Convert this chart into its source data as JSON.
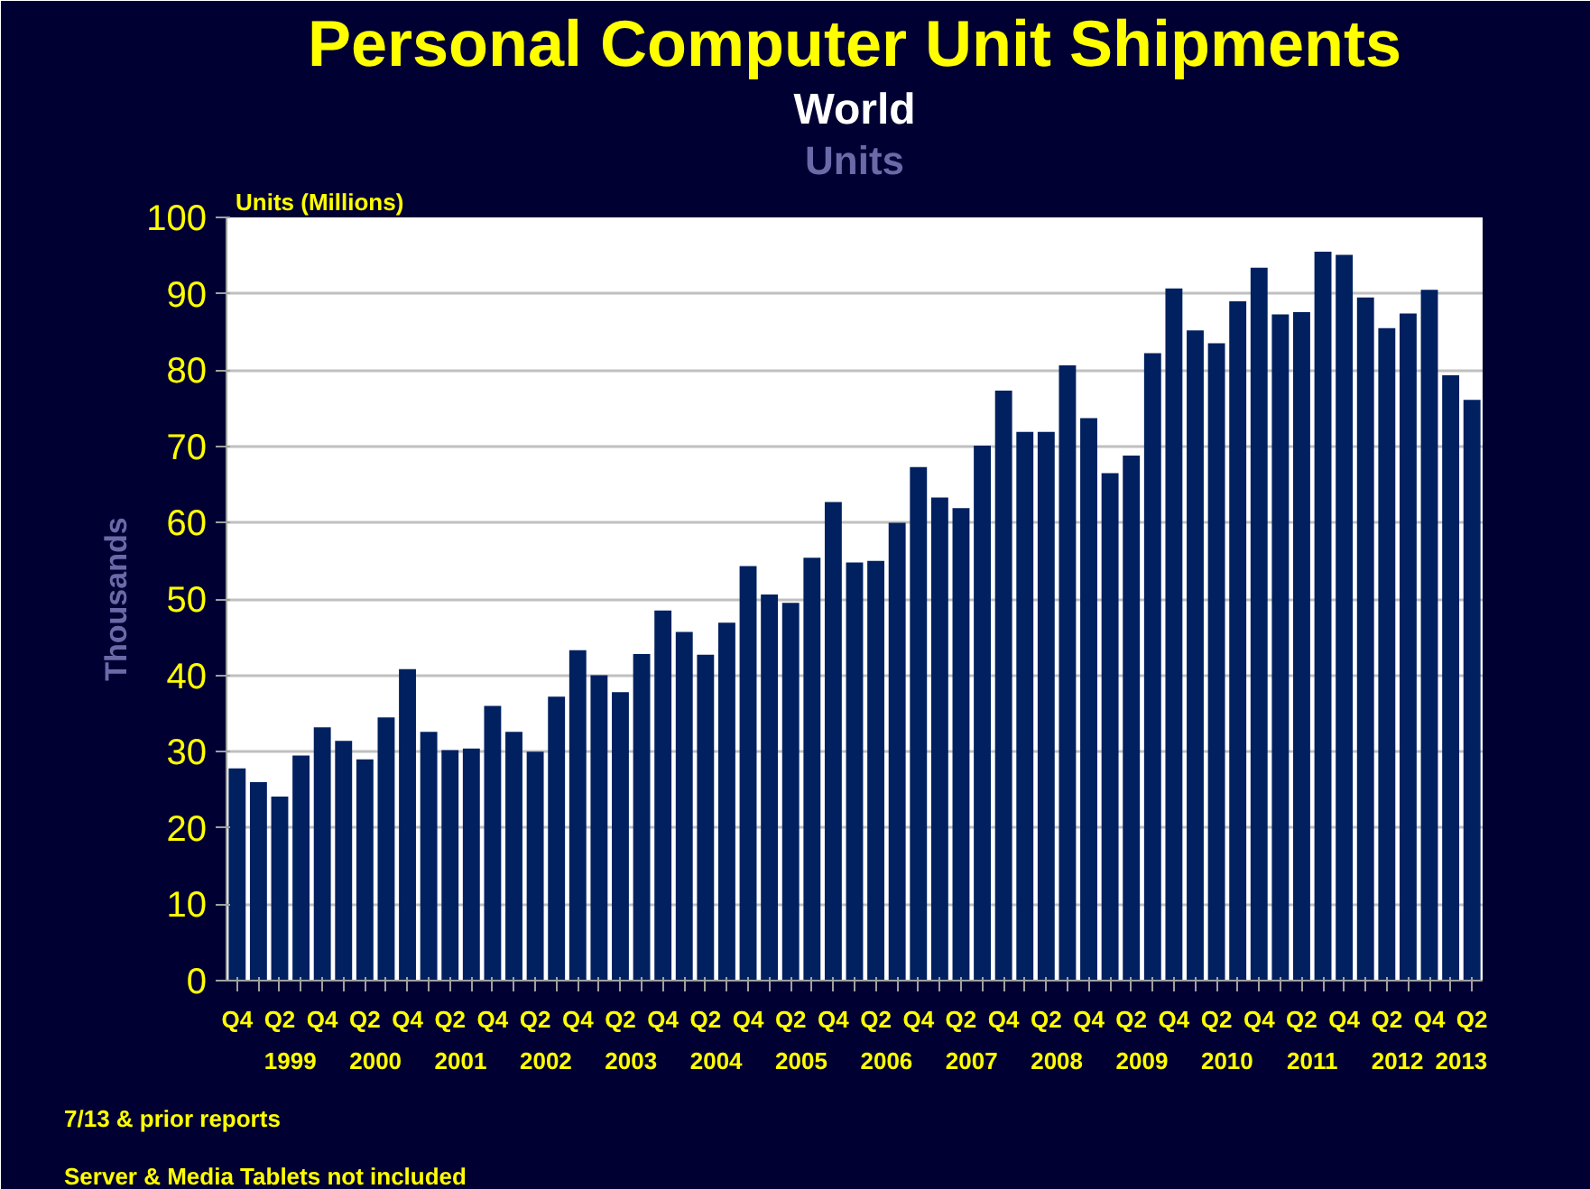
{
  "chart_data": {
    "type": "bar",
    "title": "Personal Computer Unit Shipments",
    "subtitle": "World",
    "ylabel": "Thousands",
    "annotations": [
      "Units",
      "Units (Millions)",
      "1999",
      "2000",
      "2001",
      "2002",
      "2003",
      "2004",
      "2005",
      "2006",
      "2007",
      "2008",
      "2009",
      "2010",
      "2011",
      "2012",
      "2013",
      "7/13 & prior reports",
      "Server & Media Tablets not included"
    ],
    "categories": [
      "Q4",
      null,
      "Q2",
      null,
      "Q4",
      null,
      "Q2",
      null,
      "Q4",
      null,
      "Q2",
      null,
      "Q4",
      null,
      "Q2",
      null,
      "Q4",
      null,
      "Q2",
      null,
      "Q4",
      null,
      "Q2",
      null,
      "Q4",
      null,
      "Q2",
      null,
      "Q4",
      null,
      "Q2",
      null,
      "Q4",
      null,
      "Q2",
      null,
      "Q4",
      null,
      "Q2",
      null,
      "Q4",
      null,
      "Q2",
      null,
      "Q4",
      null,
      "Q2",
      null,
      "Q4",
      null,
      "Q2",
      null,
      "Q4",
      null,
      "Q2",
      null,
      "Q4",
      null,
      "Q2"
    ],
    "values": [
      27.8,
      26.0,
      24.1,
      29.5,
      33.2,
      31.4,
      29.0,
      34.5,
      40.8,
      32.6,
      30.2,
      30.4,
      36.0,
      32.6,
      30.0,
      37.2,
      43.3,
      40.0,
      37.8,
      42.8,
      48.5,
      45.7,
      42.7,
      46.9,
      54.3,
      50.6,
      49.5,
      55.4,
      62.7,
      54.8,
      55.0,
      60.0,
      67.3,
      63.3,
      61.9,
      70.1,
      77.3,
      71.9,
      71.9,
      80.6,
      73.7,
      66.5,
      68.8,
      82.2,
      90.7,
      85.2,
      83.5,
      89.0,
      93.4,
      87.3,
      87.6,
      95.5,
      95.1,
      89.5,
      85.5,
      87.4,
      90.5,
      79.3,
      76.1
    ],
    "color": "#002060",
    "ylim": [
      0,
      100
    ],
    "yticks": [
      0,
      10,
      20,
      30,
      40,
      50,
      60,
      70,
      80,
      90,
      100
    ],
    "grid": "y"
  }
}
